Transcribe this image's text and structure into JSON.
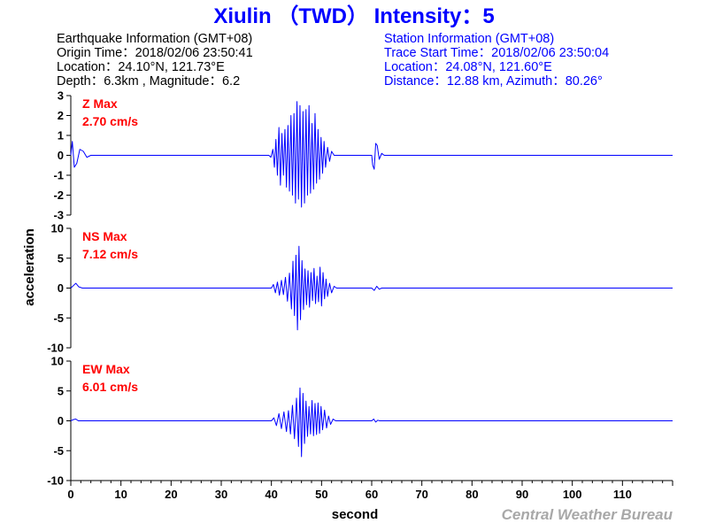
{
  "title": "Xiulin （TWD） Intensity：5",
  "earthquake_info": {
    "heading": "Earthquake Information  (GMT+08)",
    "origin_time": "Origin Time：2018/02/06 23:50:41",
    "location": "Location：24.10°N, 121.73°E",
    "depth_magnitude": "Depth：6.3km , Magnitude：6.2"
  },
  "station_info": {
    "heading": "Station Information  (GMT+08)",
    "trace_start": "Trace Start Time：2018/02/06 23:50:04",
    "location": "Location：24.08°N, 121.60°E",
    "distance_azimuth": "Distance：12.88 km, Azimuth：80.26°"
  },
  "credit": "Central Weather Bureau",
  "colors": {
    "trace": "#0000ff",
    "title": "#0000ff",
    "label": "#ff0000",
    "credit": "#a8a8a8"
  },
  "chart_data": {
    "type": "line",
    "xlabel": "second",
    "ylabel": "acceleration",
    "xlim": [
      0,
      120
    ],
    "xticks": [
      0,
      10,
      20,
      30,
      40,
      50,
      60,
      70,
      80,
      90,
      100,
      110
    ],
    "grid": false,
    "panels": [
      {
        "name": "Z",
        "label": "Z Max",
        "max_label": "2.70 cm/s",
        "ylim": [
          -3,
          3
        ],
        "yticks": [
          3,
          2,
          1,
          0,
          -1,
          -2,
          -3
        ],
        "points": [
          [
            0,
            0
          ],
          [
            0.3,
            0.7
          ],
          [
            0.7,
            -0.6
          ],
          [
            1.2,
            -0.4
          ],
          [
            1.8,
            0.3
          ],
          [
            2.5,
            0.2
          ],
          [
            3.2,
            -0.1
          ],
          [
            4,
            0
          ],
          [
            39.5,
            0
          ],
          [
            39.9,
            -0.1
          ],
          [
            40.3,
            0.3
          ],
          [
            40.6,
            -0.6
          ],
          [
            40.9,
            0.8
          ],
          [
            41.2,
            -1.0
          ],
          [
            41.5,
            1.4
          ],
          [
            41.8,
            -1.5
          ],
          [
            42.1,
            1.1
          ],
          [
            42.4,
            -1.0
          ],
          [
            42.7,
            1.3
          ],
          [
            43,
            -1.6
          ],
          [
            43.3,
            1.5
          ],
          [
            43.6,
            -1.8
          ],
          [
            43.9,
            2.0
          ],
          [
            44.2,
            -2.0
          ],
          [
            44.5,
            2.1
          ],
          [
            44.8,
            -2.4
          ],
          [
            45.1,
            2.7
          ],
          [
            45.4,
            -2.2
          ],
          [
            45.7,
            2.5
          ],
          [
            46,
            -2.6
          ],
          [
            46.3,
            2.2
          ],
          [
            46.6,
            -2.4
          ],
          [
            46.9,
            2.3
          ],
          [
            47.2,
            -2.0
          ],
          [
            47.5,
            2.5
          ],
          [
            47.8,
            -1.9
          ],
          [
            48.1,
            1.6
          ],
          [
            48.4,
            -1.7
          ],
          [
            48.7,
            2.1
          ],
          [
            49,
            -1.4
          ],
          [
            49.3,
            1.3
          ],
          [
            49.6,
            -1.2
          ],
          [
            49.9,
            0.9
          ],
          [
            50.2,
            -0.9
          ],
          [
            50.5,
            0.7
          ],
          [
            50.8,
            -0.6
          ],
          [
            51.2,
            0.4
          ],
          [
            51.6,
            -0.3
          ],
          [
            52,
            0.2
          ],
          [
            52.5,
            0
          ],
          [
            60,
            0
          ],
          [
            60.2,
            -0.5
          ],
          [
            60.5,
            -0.7
          ],
          [
            60.8,
            0.6
          ],
          [
            61.1,
            0.5
          ],
          [
            61.5,
            -0.2
          ],
          [
            62,
            0.1
          ],
          [
            62.5,
            0
          ],
          [
            120,
            0
          ]
        ]
      },
      {
        "name": "NS",
        "label": "NS Max",
        "max_label": "7.12 cm/s",
        "ylim": [
          -10,
          10
        ],
        "yticks": [
          10,
          5,
          0,
          -5,
          -10
        ],
        "points": [
          [
            0,
            0
          ],
          [
            0.5,
            0.4
          ],
          [
            1,
            0.8
          ],
          [
            1.6,
            0.2
          ],
          [
            2.3,
            0
          ],
          [
            40,
            0
          ],
          [
            40.4,
            0.6
          ],
          [
            40.8,
            -0.8
          ],
          [
            41.2,
            1.0
          ],
          [
            41.6,
            -1.2
          ],
          [
            42,
            1.3
          ],
          [
            42.4,
            -1.1
          ],
          [
            42.8,
            1.8
          ],
          [
            43.2,
            -2.2
          ],
          [
            43.6,
            2.5
          ],
          [
            44,
            -3.5
          ],
          [
            44.3,
            4.5
          ],
          [
            44.6,
            -4.6
          ],
          [
            44.9,
            5.5
          ],
          [
            45.2,
            -7.0
          ],
          [
            45.5,
            7.0
          ],
          [
            45.8,
            -5.3
          ],
          [
            46.1,
            4.6
          ],
          [
            46.4,
            -3.6
          ],
          [
            46.7,
            3.2
          ],
          [
            47,
            -2.8
          ],
          [
            47.3,
            2.9
          ],
          [
            47.6,
            -3.2
          ],
          [
            47.9,
            2.6
          ],
          [
            48.2,
            -2.1
          ],
          [
            48.5,
            3.3
          ],
          [
            48.8,
            -2.6
          ],
          [
            49.1,
            2.0
          ],
          [
            49.4,
            -2.3
          ],
          [
            49.7,
            3.5
          ],
          [
            50,
            -3.0
          ],
          [
            50.3,
            2.6
          ],
          [
            50.6,
            -1.8
          ],
          [
            50.9,
            1.5
          ],
          [
            51.2,
            -1.4
          ],
          [
            51.6,
            0.8
          ],
          [
            52,
            -0.8
          ],
          [
            52.5,
            0.3
          ],
          [
            53,
            0
          ],
          [
            60,
            0
          ],
          [
            60.5,
            -0.4
          ],
          [
            61,
            0.3
          ],
          [
            61.5,
            -0.2
          ],
          [
            62,
            0
          ],
          [
            120,
            0
          ]
        ]
      },
      {
        "name": "EW",
        "label": "EW Max",
        "max_label": "6.01 cm/s",
        "ylim": [
          -10,
          10
        ],
        "yticks": [
          10,
          5,
          0,
          -5,
          -10
        ],
        "points": [
          [
            0,
            0
          ],
          [
            0.5,
            0.2
          ],
          [
            1,
            0.3
          ],
          [
            1.5,
            0
          ],
          [
            40,
            0
          ],
          [
            40.5,
            0.5
          ],
          [
            41,
            -0.8
          ],
          [
            41.5,
            1.2
          ],
          [
            42,
            -1.3
          ],
          [
            42.5,
            1.5
          ],
          [
            43,
            -1.8
          ],
          [
            43.4,
            1.7
          ],
          [
            43.8,
            -2.2
          ],
          [
            44.2,
            2.6
          ],
          [
            44.6,
            -3.0
          ],
          [
            45,
            3.8
          ],
          [
            45.4,
            -4.3
          ],
          [
            45.7,
            5.5
          ],
          [
            46,
            -6.0
          ],
          [
            46.3,
            4.6
          ],
          [
            46.6,
            -3.8
          ],
          [
            46.9,
            3.3
          ],
          [
            47.2,
            -2.6
          ],
          [
            47.5,
            2.4
          ],
          [
            47.8,
            -2.2
          ],
          [
            48.1,
            3.4
          ],
          [
            48.4,
            -2.5
          ],
          [
            48.7,
            2.9
          ],
          [
            49,
            -2.3
          ],
          [
            49.3,
            3.0
          ],
          [
            49.6,
            -2.1
          ],
          [
            49.9,
            2.4
          ],
          [
            50.2,
            -1.5
          ],
          [
            50.6,
            1.8
          ],
          [
            51,
            -1.2
          ],
          [
            51.4,
            0.8
          ],
          [
            51.8,
            -0.6
          ],
          [
            52.3,
            0.3
          ],
          [
            52.8,
            0
          ],
          [
            60,
            0
          ],
          [
            60.4,
            0.3
          ],
          [
            60.8,
            -0.2
          ],
          [
            61.2,
            0.1
          ],
          [
            61.6,
            0
          ],
          [
            120,
            0
          ]
        ]
      }
    ]
  }
}
